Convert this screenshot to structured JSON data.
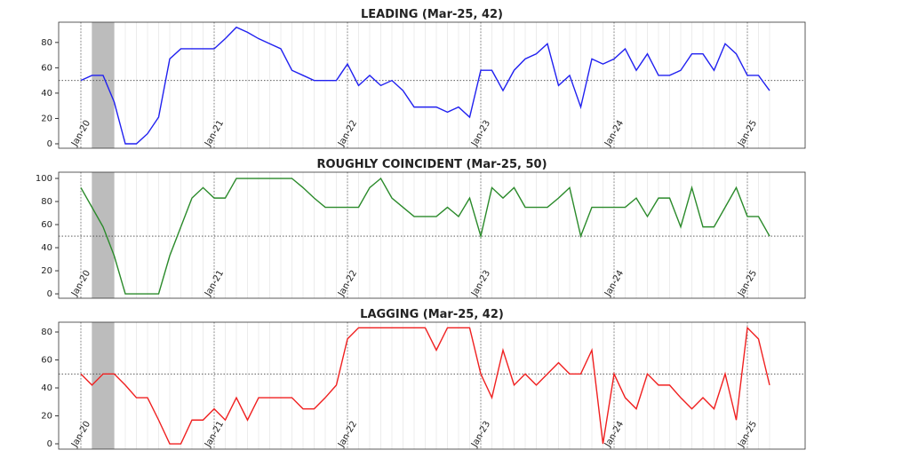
{
  "chart_data": [
    {
      "type": "line",
      "title": "LEADING (Mar-25, 42)",
      "categories": [
        "Jan-20",
        null,
        null,
        null,
        null,
        null,
        null,
        null,
        null,
        null,
        null,
        null,
        "Jan-21",
        null,
        null,
        null,
        null,
        null,
        null,
        null,
        null,
        null,
        null,
        null,
        "Jan-22",
        null,
        null,
        null,
        null,
        null,
        null,
        null,
        null,
        null,
        null,
        null,
        "Jan-23",
        null,
        null,
        null,
        null,
        null,
        null,
        null,
        null,
        null,
        null,
        null,
        "Jan-24",
        null,
        null,
        null,
        null,
        null,
        null,
        null,
        null,
        null,
        null,
        null,
        "Jan-25",
        null,
        null
      ],
      "series": [
        {
          "color": "#2020f0",
          "values": [
            50,
            54,
            54,
            33,
            0,
            0,
            8,
            21,
            67,
            75,
            75,
            75,
            75,
            83,
            92,
            88,
            83,
            79,
            75,
            58,
            54,
            50,
            50,
            50,
            63,
            46,
            54,
            46,
            50,
            42,
            29,
            29,
            29,
            25,
            29,
            21,
            58,
            58,
            42,
            58,
            67,
            71,
            79,
            46,
            54,
            29,
            67,
            63,
            67,
            75,
            58,
            71,
            54,
            54,
            58,
            71,
            71,
            58,
            79,
            71,
            54,
            54,
            42
          ]
        }
      ],
      "ylim": [
        -3.5,
        96
      ],
      "yticks": [
        0,
        20,
        40,
        60,
        80
      ],
      "reference_line": 50,
      "shaded_span": [
        1,
        3
      ],
      "grid": true
    },
    {
      "type": "line",
      "title": "ROUGHLY COINCIDENT (Mar-25, 50)",
      "categories": [
        "Jan-20",
        null,
        null,
        null,
        null,
        null,
        null,
        null,
        null,
        null,
        null,
        null,
        "Jan-21",
        null,
        null,
        null,
        null,
        null,
        null,
        null,
        null,
        null,
        null,
        null,
        "Jan-22",
        null,
        null,
        null,
        null,
        null,
        null,
        null,
        null,
        null,
        null,
        null,
        "Jan-23",
        null,
        null,
        null,
        null,
        null,
        null,
        null,
        null,
        null,
        null,
        null,
        "Jan-24",
        null,
        null,
        null,
        null,
        null,
        null,
        null,
        null,
        null,
        null,
        null,
        "Jan-25",
        null,
        null
      ],
      "series": [
        {
          "color": "#2a8a2a",
          "values": [
            92,
            75,
            58,
            33,
            0,
            0,
            0,
            0,
            33,
            58,
            83,
            92,
            83,
            83,
            100,
            100,
            100,
            100,
            100,
            100,
            92,
            83,
            75,
            75,
            75,
            75,
            92,
            100,
            83,
            75,
            67,
            67,
            67,
            75,
            67,
            83,
            50,
            92,
            83,
            92,
            75,
            75,
            75,
            83,
            92,
            50,
            75,
            75,
            75,
            75,
            83,
            67,
            83,
            83,
            58,
            92,
            58,
            58,
            75,
            92,
            67,
            67,
            50
          ]
        }
      ],
      "ylim": [
        -3.8,
        105.4
      ],
      "yticks": [
        0,
        20,
        40,
        60,
        80,
        100
      ],
      "reference_line": 50,
      "shaded_span": [
        1,
        3
      ],
      "grid": true
    },
    {
      "type": "line",
      "title": "LAGGING (Mar-25, 42)",
      "categories": [
        "Jan-20",
        null,
        null,
        null,
        null,
        null,
        null,
        null,
        null,
        null,
        null,
        null,
        "Jan-21",
        null,
        null,
        null,
        null,
        null,
        null,
        null,
        null,
        null,
        null,
        null,
        "Jan-22",
        null,
        null,
        null,
        null,
        null,
        null,
        null,
        null,
        null,
        null,
        null,
        "Jan-23",
        null,
        null,
        null,
        null,
        null,
        null,
        null,
        null,
        null,
        null,
        null,
        "Jan-24",
        null,
        null,
        null,
        null,
        null,
        null,
        null,
        null,
        null,
        null,
        null,
        "Jan-25",
        null,
        null
      ],
      "series": [
        {
          "color": "#f02020",
          "values": [
            50,
            42,
            50,
            50,
            42,
            33,
            33,
            17,
            0,
            0,
            17,
            17,
            25,
            17,
            33,
            17,
            33,
            33,
            33,
            33,
            25,
            25,
            33,
            42,
            75,
            83,
            83,
            83,
            83,
            83,
            83,
            83,
            67,
            83,
            83,
            83,
            50,
            33,
            67,
            42,
            50,
            42,
            50,
            58,
            50,
            50,
            67,
            0,
            50,
            33,
            25,
            50,
            42,
            42,
            33,
            25,
            33,
            25,
            50,
            17,
            83,
            75,
            42
          ]
        }
      ],
      "ylim": [
        -3.8,
        87
      ],
      "yticks": [
        0,
        20,
        40,
        60,
        80
      ],
      "reference_line": 50,
      "shaded_span": [
        1,
        3
      ],
      "grid": true
    }
  ]
}
